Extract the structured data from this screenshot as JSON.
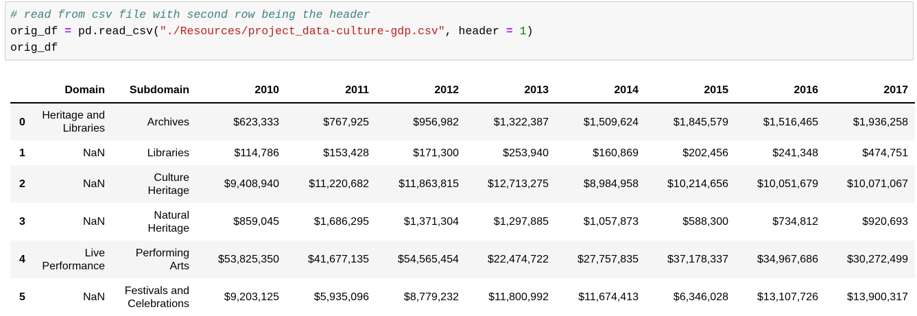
{
  "code": {
    "lines": [
      [
        "# read from csv file with second row being the header"
      ],
      [
        "orig_df ",
        "= ",
        "pd.read_csv(",
        "\"./Resources/project_data-culture-gdp.csv\"",
        ", header ",
        "= ",
        "1",
        ")"
      ],
      [
        "orig_df"
      ]
    ]
  },
  "table": {
    "header": [
      "Domain",
      "Subdomain",
      "2010",
      "2011",
      "2012",
      "2013",
      "2014",
      "2015",
      "2016",
      "2017"
    ],
    "rows": [
      [
        "0",
        "Heritage and Libraries",
        "Archives",
        "$623,333",
        "$767,925",
        "$956,982",
        "$1,322,387",
        "$1,509,624",
        "$1,845,579",
        "$1,516,465",
        "$1,936,258"
      ],
      [
        "1",
        "NaN",
        "Libraries",
        "$114,786",
        "$153,428",
        "$171,300",
        "$253,940",
        "$160,869",
        "$202,456",
        "$241,348",
        "$474,751"
      ],
      [
        "2",
        "NaN",
        "Culture Heritage",
        "$9,408,940",
        "$11,220,682",
        "$11,863,815",
        "$12,713,275",
        "$8,984,958",
        "$10,214,656",
        "$10,051,679",
        "$10,071,067"
      ],
      [
        "3",
        "NaN",
        "Natural Heritage",
        "$859,045",
        "$1,686,295",
        "$1,371,304",
        "$1,297,885",
        "$1,057,873",
        "$588,300",
        "$734,812",
        "$920,693"
      ],
      [
        "4",
        "Live Performance",
        "Performing Arts",
        "$53,825,350",
        "$41,677,135",
        "$54,565,454",
        "$22,474,722",
        "$27,757,835",
        "$37,178,337",
        "$34,967,686",
        "$30,272,499"
      ],
      [
        "5",
        "NaN",
        "Festivals and Celebrations",
        "$9,203,125",
        "$5,935,096",
        "$8,779,232",
        "$11,800,992",
        "$11,674,413",
        "$6,346,028",
        "$13,107,726",
        "$13,900,317"
      ]
    ]
  }
}
